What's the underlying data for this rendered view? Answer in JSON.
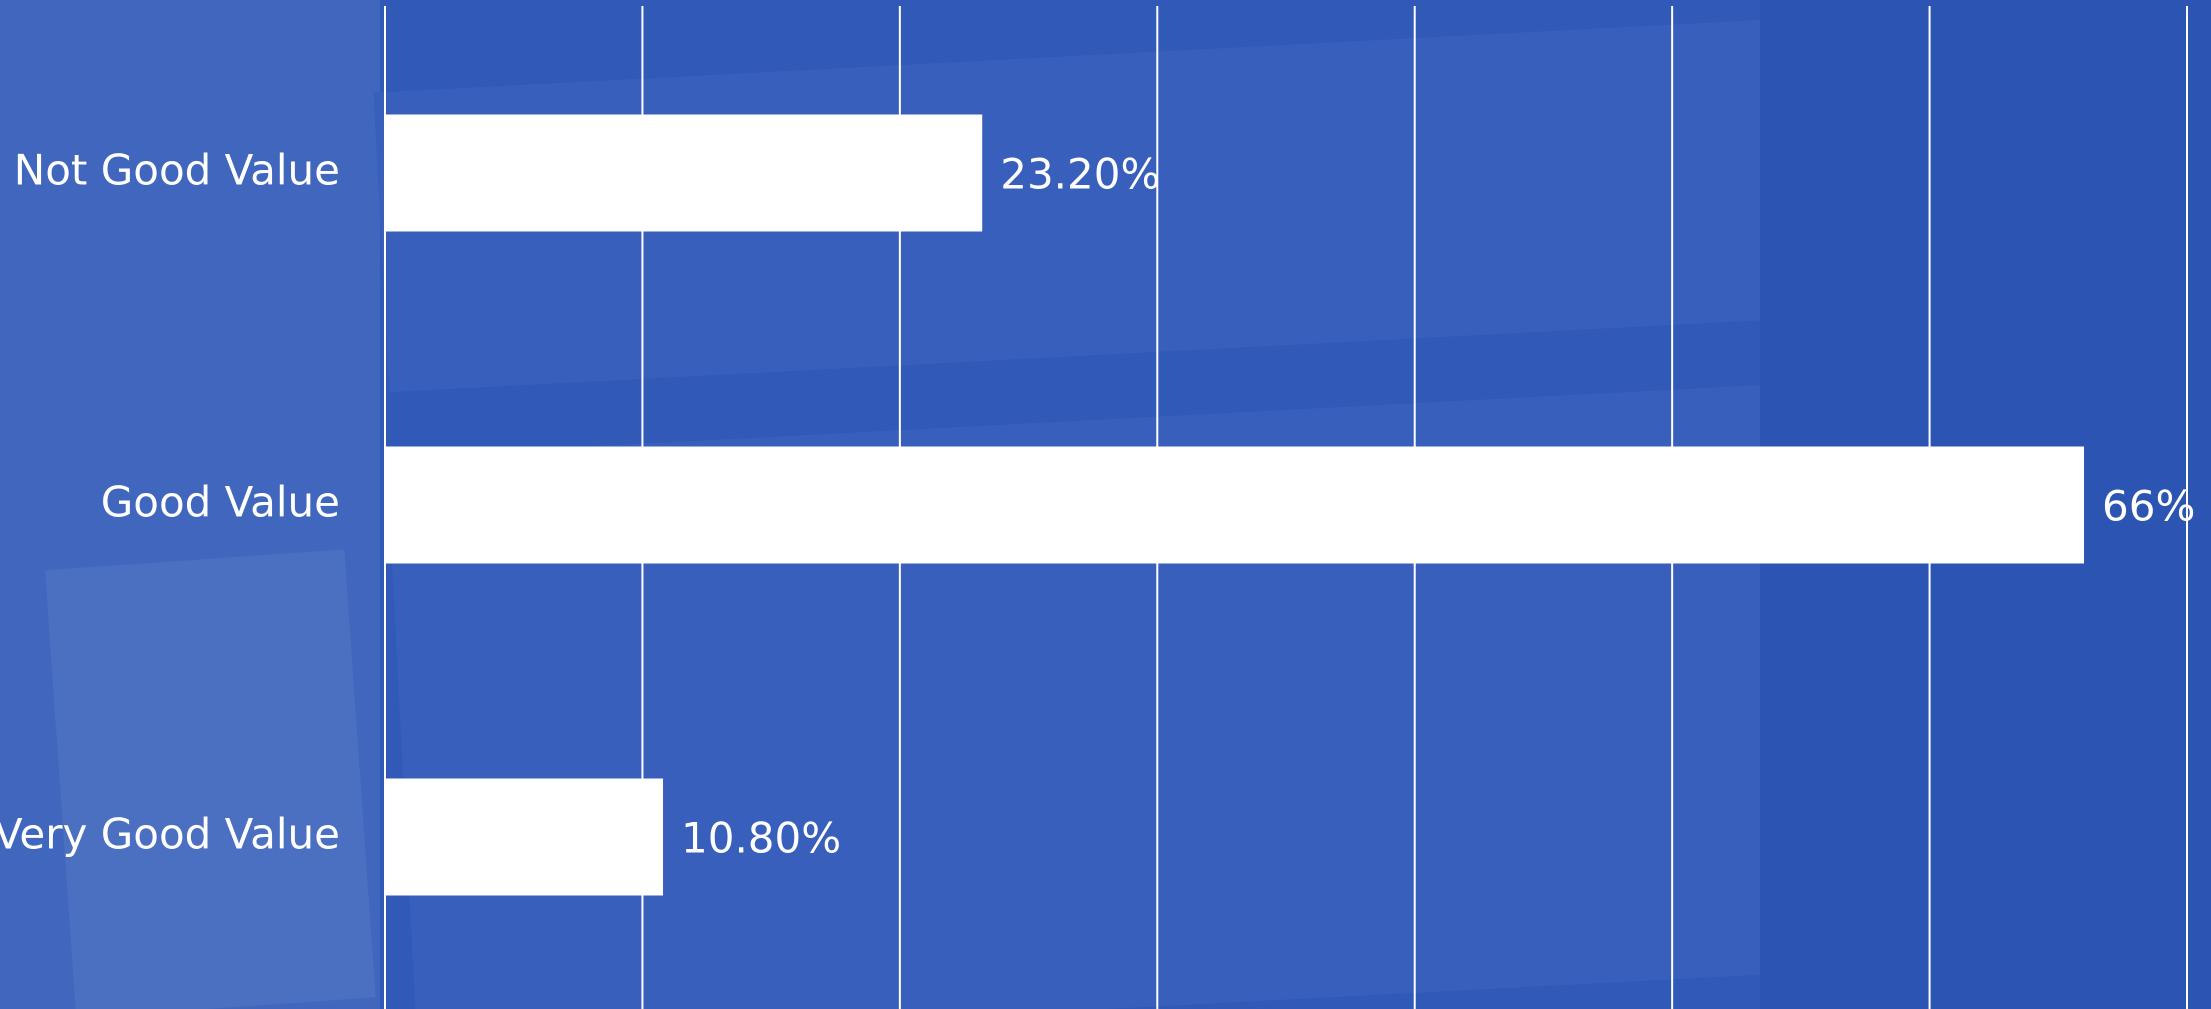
{
  "chart_data": {
    "type": "bar",
    "orientation": "horizontal",
    "categories": [
      "Not Good Value",
      "Good Value",
      "Very Good Value"
    ],
    "values": [
      23.2,
      66,
      10.8
    ],
    "value_labels": [
      "23.20%",
      "66%",
      "10.80%"
    ],
    "color": "#ffffff",
    "xlim": [
      0,
      70
    ],
    "xticks": [
      0,
      10,
      20,
      30,
      40,
      50,
      60,
      70
    ],
    "grid": true
  }
}
